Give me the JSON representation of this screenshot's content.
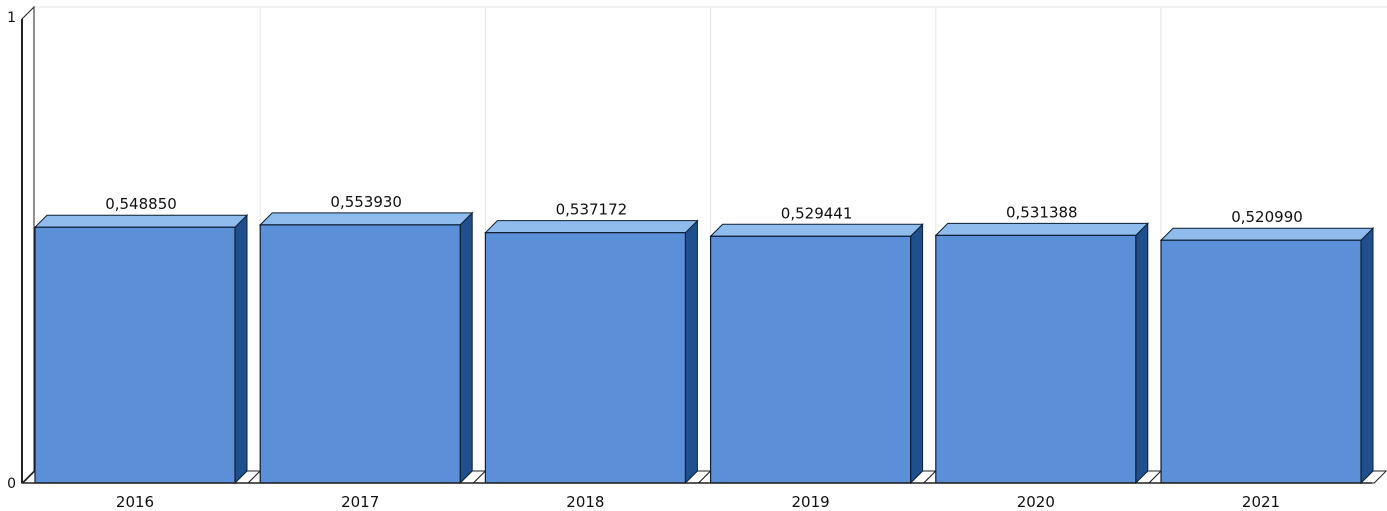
{
  "chart_data": {
    "type": "bar",
    "style": "3d",
    "categories": [
      "2016",
      "2017",
      "2018",
      "2019",
      "2020",
      "2021"
    ],
    "values": [
      0.54885,
      0.55393,
      0.537172,
      0.529441,
      0.531388,
      0.52099
    ],
    "value_labels": [
      "0,548850",
      "0,553930",
      "0,537172",
      "0,529441",
      "0,531388",
      "0,520990"
    ],
    "y_ticks": [
      {
        "value": 0,
        "label": "0"
      },
      {
        "value": 1,
        "label": "1"
      }
    ],
    "ylim": [
      0,
      1
    ],
    "grid": "vertical",
    "legend": "none",
    "colors": {
      "front": "#5b8fd8",
      "top": "#8fbcec",
      "side": "#1f4f8c",
      "outline": "#0d1f33",
      "grid": "#e6e6e6"
    }
  }
}
